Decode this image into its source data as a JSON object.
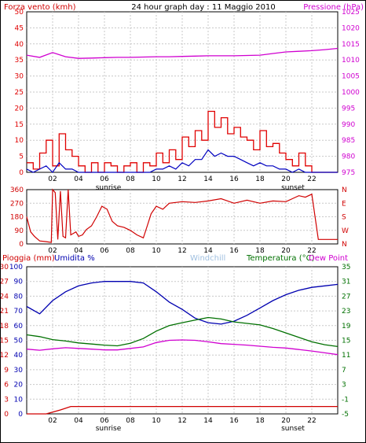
{
  "header": {
    "left_label": "Forza vento (kmh)",
    "title": "24 hour graph day : 11 Maggio 2010",
    "right_label": "Pressione (hPa)"
  },
  "bottom_header": {
    "rain": "Pioggia (mm)",
    "humidity": "Umidita %",
    "windchill": "Windchill",
    "temperature": "Temperatura (°C)",
    "dewpoint": "Dew Point"
  },
  "sun": {
    "sunrise": "sunrise",
    "sunset": "sunset"
  },
  "colors": {
    "wind": "#e00000",
    "wind_avg": "#0000c0",
    "pressure": "#d000d0",
    "direction": "#d00000",
    "humidity": "#0000b0",
    "temperature": "#007000",
    "dewpoint": "#d000d0",
    "rain": "#d00000",
    "windchill": "#a0c0e0",
    "grid": "#c8c8c8"
  },
  "chart_data": [
    {
      "type": "line",
      "name": "wind",
      "x_ticks": [
        "02",
        "04",
        "06",
        "08",
        "10",
        "12",
        "14",
        "16",
        "18",
        "20",
        "22"
      ],
      "ylim": [
        0,
        50
      ],
      "y_ticks": [
        "0",
        "5",
        "10",
        "15",
        "20",
        "25",
        "30",
        "35",
        "40",
        "45",
        "50"
      ],
      "y2lim": [
        975,
        1025
      ],
      "y2_ticks": [
        "975",
        "980",
        "985",
        "990",
        "995",
        "1000",
        "1005",
        "1010",
        "1015",
        "1020",
        "1025"
      ],
      "series": [
        {
          "name": "Forza vento (kmh)",
          "x": [
            0,
            0.5,
            1,
            1.5,
            2,
            2.5,
            3,
            3.5,
            4,
            4.5,
            5,
            5.5,
            6,
            6.5,
            7,
            7.5,
            8,
            8.5,
            9,
            9.5,
            10,
            10.5,
            11,
            11.5,
            12,
            12.5,
            13,
            13.5,
            14,
            14.5,
            15,
            15.5,
            16,
            16.5,
            17,
            17.5,
            18,
            18.5,
            19,
            19.5,
            20,
            20.5,
            21,
            21.5,
            22,
            22.5,
            23,
            23.5,
            24
          ],
          "values": [
            3,
            1,
            6,
            10,
            2,
            12,
            7,
            5,
            2,
            0,
            3,
            0,
            3,
            2,
            0,
            2,
            3,
            0,
            3,
            2,
            6,
            3,
            7,
            4,
            11,
            8,
            13,
            10,
            19,
            14,
            17,
            12,
            14,
            11,
            10,
            7,
            13,
            8,
            9,
            6,
            4,
            2,
            6,
            2,
            0,
            0,
            0,
            0,
            0
          ]
        },
        {
          "name": "wind average",
          "x": [
            0,
            0.5,
            1,
            1.5,
            2,
            2.5,
            3,
            3.5,
            4,
            4.5,
            5,
            5.5,
            6,
            6.5,
            7,
            7.5,
            8,
            8.5,
            9,
            9.5,
            10,
            10.5,
            11,
            11.5,
            12,
            12.5,
            13,
            13.5,
            14,
            14.5,
            15,
            15.5,
            16,
            16.5,
            17,
            17.5,
            18,
            18.5,
            19,
            19.5,
            20,
            20.5,
            21,
            21.5,
            22,
            22.5,
            23,
            23.5,
            24
          ],
          "values": [
            1,
            0,
            1,
            2,
            0,
            3,
            1,
            1,
            0,
            0,
            0,
            0,
            0,
            0,
            0,
            0,
            0,
            0,
            0,
            0,
            1,
            1,
            2,
            1,
            3,
            2,
            4,
            4,
            7,
            5,
            6,
            5,
            5,
            4,
            3,
            2,
            3,
            2,
            2,
            1,
            1,
            0,
            1,
            0,
            0,
            0,
            0,
            0,
            0
          ]
        },
        {
          "name": "Pressione (hPa)",
          "axis": "right",
          "x": [
            0,
            1,
            2,
            3,
            4,
            5,
            6,
            7,
            8,
            9,
            10,
            11,
            12,
            13,
            14,
            15,
            16,
            17,
            18,
            19,
            20,
            21,
            22,
            23,
            24
          ],
          "values": [
            1011.5,
            1010.8,
            1012.3,
            1011.0,
            1010.5,
            1010.6,
            1010.7,
            1010.8,
            1010.8,
            1010.9,
            1011.0,
            1011.0,
            1011.1,
            1011.2,
            1011.3,
            1011.3,
            1011.3,
            1011.4,
            1011.5,
            1012.0,
            1012.5,
            1012.7,
            1012.9,
            1013.2,
            1013.6
          ]
        }
      ]
    },
    {
      "type": "line",
      "name": "wind-direction",
      "x_ticks": [
        "02",
        "04",
        "06",
        "08",
        "10",
        "12",
        "14",
        "16",
        "18",
        "20",
        "22"
      ],
      "ylim": [
        0,
        360
      ],
      "y_ticks": [
        "0",
        "90",
        "180",
        "270",
        "360"
      ],
      "y2_ticks": [
        "N",
        "W",
        "S",
        "E",
        "N"
      ],
      "series": [
        {
          "name": "direction",
          "x": [
            0,
            0.3,
            0.6,
            1.0,
            1.5,
            1.9,
            2.0,
            2.2,
            2.4,
            2.6,
            2.8,
            3.0,
            3.2,
            3.4,
            3.6,
            3.8,
            4.0,
            4.3,
            4.6,
            5.0,
            5.4,
            5.8,
            6.2,
            6.6,
            7.0,
            7.5,
            8.0,
            8.5,
            9.0,
            9.3,
            9.6,
            10.0,
            10.5,
            11,
            12,
            13,
            14,
            15,
            16,
            17,
            18,
            19,
            20,
            20.5,
            21,
            21.5,
            22,
            22.5,
            23,
            24
          ],
          "values": [
            180,
            80,
            50,
            20,
            15,
            10,
            360,
            340,
            30,
            350,
            50,
            40,
            360,
            60,
            70,
            80,
            50,
            60,
            95,
            120,
            180,
            250,
            230,
            150,
            120,
            110,
            90,
            60,
            40,
            120,
            200,
            250,
            230,
            270,
            280,
            275,
            285,
            300,
            270,
            290,
            270,
            285,
            280,
            300,
            320,
            310,
            330,
            30,
            30,
            30
          ]
        }
      ]
    },
    {
      "type": "line",
      "name": "temperature-humidity",
      "x_ticks": [
        "02",
        "04",
        "06",
        "08",
        "10",
        "12",
        "14",
        "16",
        "18",
        "20",
        "22"
      ],
      "ylim": [
        0,
        30
      ],
      "y_ticks": [
        "0",
        "3",
        "6",
        "9",
        "12",
        "15",
        "18",
        "21",
        "24",
        "27",
        "30"
      ],
      "y_ticks_humidity": [
        "0",
        "10",
        "20",
        "30",
        "40",
        "50",
        "60",
        "70",
        "80",
        "90",
        "100"
      ],
      "y2lim": [
        -5,
        35
      ],
      "y2_ticks": [
        "-5",
        "-1",
        "3",
        "7",
        "11",
        "15",
        "19",
        "23",
        "27",
        "31",
        "35"
      ],
      "series": [
        {
          "name": "Umidita %",
          "x": [
            0,
            1,
            2,
            3,
            4,
            5,
            6,
            7,
            8,
            9,
            10,
            11,
            12,
            13,
            14,
            15,
            16,
            17,
            18,
            19,
            20,
            21,
            22,
            23,
            24
          ],
          "values": [
            73,
            68,
            77,
            83,
            87,
            89,
            90,
            90,
            90,
            89,
            83,
            76,
            71,
            65,
            62,
            61,
            63,
            67,
            72,
            77,
            81,
            84,
            86,
            87,
            88
          ]
        },
        {
          "name": "Temperatura (°C)",
          "x": [
            0,
            1,
            2,
            3,
            4,
            5,
            6,
            7,
            8,
            9,
            10,
            11,
            12,
            13,
            14,
            15,
            16,
            17,
            18,
            19,
            20,
            21,
            22,
            23,
            24
          ],
          "values": [
            16.5,
            16.0,
            15.2,
            14.8,
            14.3,
            14.0,
            13.7,
            13.5,
            14.2,
            15.5,
            17.5,
            19.0,
            19.8,
            20.5,
            21.2,
            20.8,
            20.0,
            19.6,
            19.2,
            18.2,
            17.0,
            15.8,
            14.6,
            13.8,
            13.3
          ]
        },
        {
          "name": "Dew Point",
          "x": [
            0,
            1,
            2,
            3,
            4,
            5,
            6,
            7,
            8,
            9,
            10,
            11,
            12,
            13,
            14,
            15,
            16,
            17,
            18,
            19,
            20,
            21,
            22,
            23,
            24
          ],
          "values": [
            12.6,
            12.3,
            12.7,
            13.0,
            12.8,
            12.6,
            12.4,
            12.4,
            12.8,
            13.2,
            14.4,
            15.0,
            15.1,
            15.0,
            14.6,
            14.1,
            13.9,
            13.7,
            13.4,
            13.1,
            12.9,
            12.5,
            12.1,
            11.6,
            11.1
          ]
        },
        {
          "name": "Pioggia (mm)",
          "x": [
            0,
            1.5,
            2.6,
            3.4,
            4,
            6,
            8,
            10,
            12,
            14,
            16,
            18,
            20,
            22,
            23,
            24
          ],
          "values": [
            0,
            0,
            0.8,
            1.5,
            1.5,
            1.5,
            1.5,
            1.5,
            1.5,
            1.5,
            1.5,
            1.5,
            1.5,
            1.5,
            1.5,
            1.5
          ]
        }
      ]
    }
  ]
}
